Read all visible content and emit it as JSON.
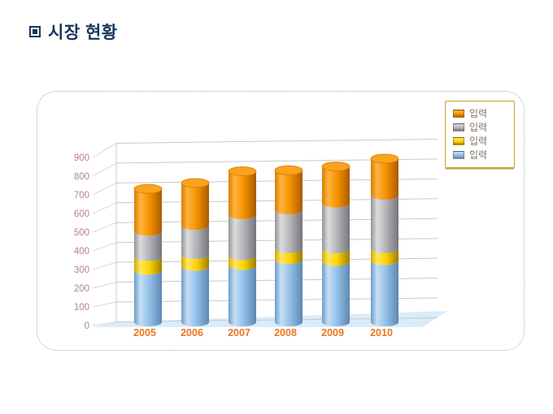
{
  "slide": {
    "title": "시장 현황"
  },
  "chart_data": {
    "type": "bar",
    "subtype": "3d-stacked-cylinder",
    "title": "",
    "xlabel": "",
    "ylabel": "",
    "categories": [
      "2005",
      "2006",
      "2007",
      "2008",
      "2009",
      "2010"
    ],
    "series": [
      {
        "name": "입력",
        "color": "#93c0e8",
        "values": [
          265,
          285,
          290,
          320,
          310,
          315
        ]
      },
      {
        "name": "입력",
        "color": "#ffd400",
        "values": [
          70,
          60,
          50,
          55,
          65,
          60
        ]
      },
      {
        "name": "입력",
        "color": "#b3b3b6",
        "values": [
          130,
          150,
          210,
          200,
          235,
          275
        ]
      },
      {
        "name": "입력",
        "color": "#f69200",
        "values": [
          220,
          220,
          225,
          205,
          190,
          190
        ]
      }
    ],
    "stack_totals": [
      685,
      715,
      775,
      780,
      800,
      840
    ],
    "ylim": [
      0,
      900
    ],
    "ytick_step": 100,
    "ytick_labels": [
      "0",
      "100",
      "200",
      "300",
      "400",
      "500",
      "600",
      "700",
      "800",
      "900"
    ],
    "grid": true,
    "legend_position": "top-right",
    "legend_reversed": true,
    "colors": {
      "title_text": "#17365d",
      "y_axis_label": "#b5838f",
      "x_axis_label": "#e8761f",
      "gridline": "#c9c9c9",
      "floor": "#d9ecf9",
      "legend_border": "#c5a22f",
      "legend_text": "#80715f"
    }
  }
}
